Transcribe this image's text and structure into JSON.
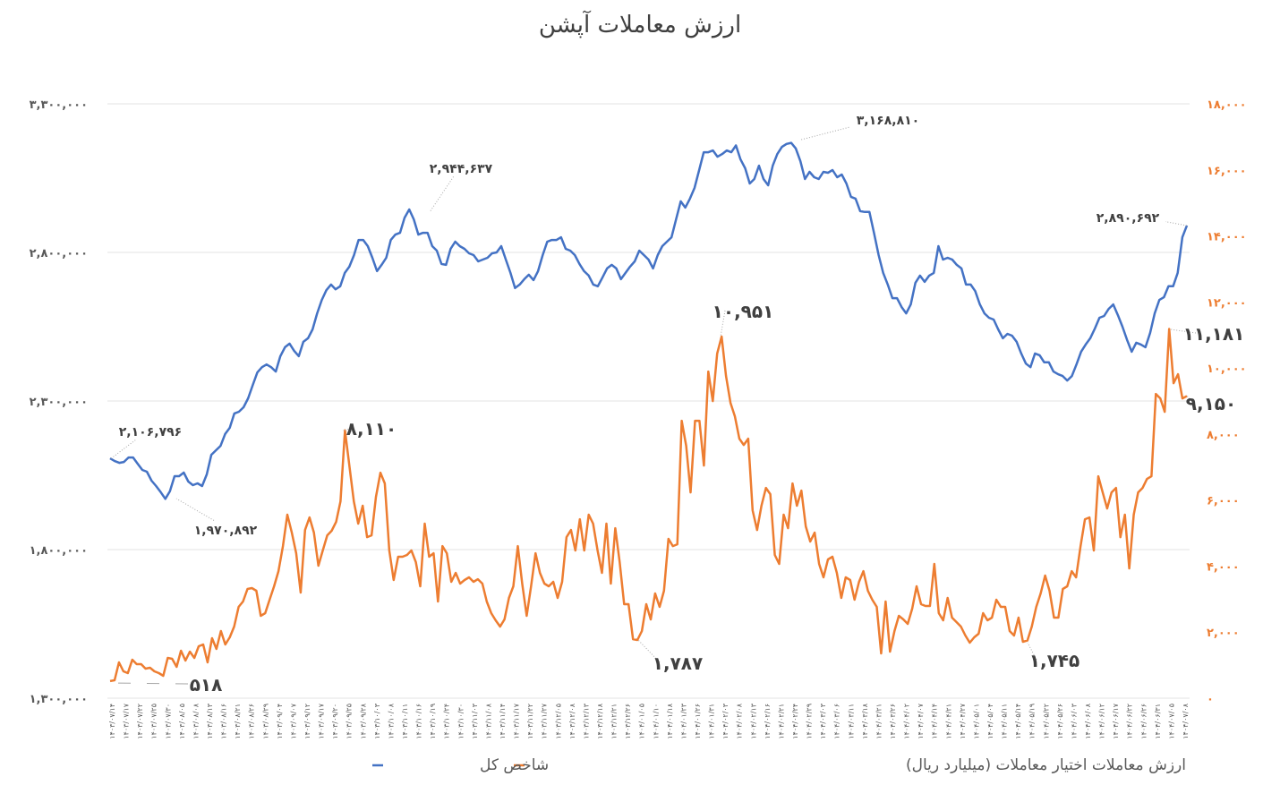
{
  "chart_data": {
    "type": "line",
    "title": "ارزش معاملات آپشن",
    "left_axis": {
      "range": [
        1300000,
        3300000
      ],
      "ticks": [
        1300000,
        1800000,
        2300000,
        2800000,
        3300000
      ],
      "tick_labels": [
        "۱,۳۰۰,۰۰۰",
        "۱,۸۰۰,۰۰۰",
        "۲,۳۰۰,۰۰۰",
        "۲,۸۰۰,۰۰۰",
        "۳,۳۰۰,۰۰۰"
      ]
    },
    "right_axis": {
      "range": [
        0,
        18000
      ],
      "ticks": [
        0,
        2000,
        4000,
        6000,
        8000,
        10000,
        12000,
        14000,
        16000,
        18000
      ],
      "tick_labels": [
        "۰",
        "۲,۰۰۰",
        "۴,۰۰۰",
        "۶,۰۰۰",
        "۸,۰۰۰",
        "۱۰,۰۰۰",
        "۱۲,۰۰۰",
        "۱۴,۰۰۰",
        "۱۶,۰۰۰",
        "۱۸,۰۰۰"
      ]
    },
    "grid": true,
    "legend_position": "bottom",
    "x_tick_labels": [
      "۱۴۰۳/۰۷/۱۴",
      "۱۴۰۳/۰۷/۱۷",
      "۱۴۰۳/۰۷/۲۲",
      "۱۴۰۳/۰۷/۲۵",
      "۱۴۰۳/۰۷/۳۰",
      "۱۴۰۳/۰۸/۰۵",
      "۱۴۰۳/۰۸/۰۸",
      "۱۴۰۳/۰۸/۱۳",
      "۱۴۰۳/۰۸/۱۶",
      "۱۴۰۳/۰۸/۲۱",
      "۱۴۰۳/۰۸/۲۶",
      "۱۴۰۳/۰۸/۲۹",
      "۱۴۰۳/۰۹/۰۴",
      "۱۴۰۳/۰۹/۰۷",
      "۱۴۰۳/۰۹/۱۲",
      "۱۴۰۳/۰۹/۱۷",
      "۱۴۰۳/۰۹/۲۰",
      "۱۴۰۳/۰۹/۲۵",
      "۱۴۰۳/۰۹/۲۸",
      "۱۴۰۳/۱۰/۰۳",
      "۱۴۰۳/۱۰/۰۸",
      "۱۴۰۳/۱۰/۱۱",
      "۱۴۰۳/۱۰/۱۶",
      "۱۴۰۳/۱۰/۱۹",
      "۱۴۰۳/۱۰/۲۴",
      "۱۴۰۳/۱۰/۳۰",
      "۱۴۰۳/۱۱/۰۳",
      "۱۴۰۳/۱۱/۰۸",
      "۱۴۰۳/۱۱/۱۴",
      "۱۴۰۳/۱۱/۱۷",
      "۱۴۰۳/۱۱/۲۲",
      "۱۴۰۳/۱۱/۲۷",
      "۱۴۰۳/۱۲/۰۵",
      "۱۴۰۳/۱۲/۰۸",
      "۱۴۰۳/۱۲/۱۳",
      "۱۴۰۳/۱۲/۱۸",
      "۱۴۰۳/۱۲/۲۱",
      "۱۴۰۳/۱۲/۲۶",
      "۱۴۰۴/۰۱/۰۵",
      "۱۴۰۴/۰۱/۱۰",
      "۱۴۰۴/۰۱/۱۸",
      "۱۴۰۴/۰۱/۲۳",
      "۱۴۰۴/۰۱/۲۶",
      "۱۴۰۴/۰۱/۳۱",
      "۱۴۰۴/۰۲/۰۳",
      "۱۴۰۴/۰۲/۰۸",
      "۱۴۰۴/۰۲/۱۳",
      "۱۴۰۴/۰۲/۱۶",
      "۱۴۰۴/۰۲/۲۱",
      "۱۴۰۴/۰۲/۲۴",
      "۱۴۰۴/۰۲/۲۹",
      "۱۴۰۴/۰۳/۰۳",
      "۱۴۰۴/۰۳/۰۶",
      "۱۴۰۴/۰۳/۱۱",
      "۱۴۰۴/۰۳/۱۸",
      "۱۴۰۴/۰۳/۲۱",
      "۱۴۰۴/۰۳/۲۶",
      "۱۴۰۴/۰۴/۰۲",
      "۱۴۰۴/۰۴/۰۷",
      "۱۴۰۴/۰۴/۱۴",
      "۱۴۰۴/۰۴/۲۱",
      "۱۴۰۴/۰۴/۲۷",
      "۱۴۰۴/۰۵/۰۱",
      "۱۴۰۴/۰۵/۰۴",
      "۱۴۰۴/۰۵/۱۱",
      "۱۴۰۴/۰۵/۱۴",
      "۱۴۰۴/۰۵/۱۹",
      "۱۴۰۴/۰۵/۲۲",
      "۱۴۰۴/۰۵/۲۶",
      "۱۴۰۴/۰۶/۰۳",
      "۱۴۰۴/۰۶/۰۸",
      "۱۴۰۴/۰۶/۱۲",
      "۱۴۰۴/۰۶/۱۷",
      "۱۴۰۴/۰۶/۲۲",
      "۱۴۰۴/۰۶/۲۶",
      "۱۴۰۴/۰۶/۳۱",
      "۱۴۰۴/۰۷/۰۵",
      "۱۴۰۴/۰۷/۰۸"
    ],
    "series": [
      {
        "name": "شاخص کل",
        "axis": "left",
        "color": "#4472C4",
        "values": [
          2106796,
          2098000,
          2092000,
          2095000,
          2110000,
          2110000,
          2089000,
          2068000,
          2062000,
          2032000,
          2014000,
          1993000,
          1970892,
          1996000,
          2047000,
          2047000,
          2059000,
          2029000,
          2017000,
          2023000,
          2014000,
          2053000,
          2119000,
          2134000,
          2149000,
          2189000,
          2210000,
          2258000,
          2264000,
          2279000,
          2309000,
          2354000,
          2396000,
          2414000,
          2423000,
          2414000,
          2399000,
          2451000,
          2481000,
          2493000,
          2469000,
          2451000,
          2499000,
          2511000,
          2541000,
          2595000,
          2640000,
          2673000,
          2692000,
          2676000,
          2686000,
          2731000,
          2752000,
          2791000,
          2842000,
          2842000,
          2821000,
          2782000,
          2737000,
          2758000,
          2782000,
          2842000,
          2860000,
          2866000,
          2917000,
          2944637,
          2911000,
          2860000,
          2866000,
          2866000,
          2821000,
          2806000,
          2761000,
          2758000,
          2812000,
          2836000,
          2821000,
          2812000,
          2797000,
          2791000,
          2770000,
          2776000,
          2782000,
          2797000,
          2800000,
          2821000,
          2776000,
          2731000,
          2680000,
          2692000,
          2710000,
          2725000,
          2707000,
          2737000,
          2791000,
          2836000,
          2842000,
          2842000,
          2851000,
          2812000,
          2806000,
          2791000,
          2761000,
          2737000,
          2722000,
          2692000,
          2686000,
          2716000,
          2746000,
          2758000,
          2746000,
          2710000,
          2731000,
          2752000,
          2770000,
          2806000,
          2791000,
          2776000,
          2746000,
          2791000,
          2821000,
          2836000,
          2851000,
          2911000,
          2972000,
          2951000,
          2981000,
          3017000,
          3077000,
          3137000,
          3137000,
          3143000,
          3122000,
          3131000,
          3143000,
          3137000,
          3160000,
          3113000,
          3083000,
          3032000,
          3047000,
          3092000,
          3047000,
          3026000,
          3092000,
          3131000,
          3155000,
          3165000,
          3168810,
          3150000,
          3107000,
          3047000,
          3071000,
          3053000,
          3047000,
          3071000,
          3068000,
          3077000,
          3053000,
          3062000,
          3032000,
          2987000,
          2981000,
          2939000,
          2936000,
          2936000,
          2866000,
          2791000,
          2731000,
          2692000,
          2646000,
          2646000,
          2616000,
          2595000,
          2625000,
          2698000,
          2722000,
          2701000,
          2722000,
          2731000,
          2821000,
          2776000,
          2782000,
          2776000,
          2758000,
          2746000,
          2692000,
          2692000,
          2670000,
          2625000,
          2595000,
          2580000,
          2574000,
          2541000,
          2511000,
          2526000,
          2520000,
          2499000,
          2460000,
          2426000,
          2414000,
          2460000,
          2454000,
          2430000,
          2430000,
          2399000,
          2390000,
          2384000,
          2369000,
          2384000,
          2423000,
          2466000,
          2490000,
          2511000,
          2544000,
          2580000,
          2586000,
          2610000,
          2625000,
          2589000,
          2550000,
          2505000,
          2466000,
          2496000,
          2490000,
          2481000,
          2529000,
          2595000,
          2640000,
          2649000,
          2686000,
          2686000,
          2731000,
          2851000,
          2890692
        ]
      },
      {
        "name": "ارزش معاملات اختیار معاملات (میلیارد ریال)",
        "axis": "right",
        "color": "#ED7D31",
        "values": [
          518,
          542,
          1084,
          813,
          759,
          1165,
          1030,
          1030,
          894,
          921,
          813,
          759,
          678,
          1220,
          1192,
          949,
          1436,
          1138,
          1409,
          1220,
          1572,
          1626,
          1084,
          1816,
          1491,
          2033,
          1626,
          1843,
          2168,
          2764,
          2927,
          3306,
          3333,
          3252,
          2493,
          2575,
          2981,
          3388,
          3848,
          4607,
          5556,
          5014,
          4390,
          3198,
          5095,
          5474,
          5014,
          4011,
          4472,
          4932,
          5068,
          5339,
          5962,
          8110,
          7046,
          5962,
          5285,
          5827,
          4878,
          4932,
          6098,
          6829,
          6504,
          4472,
          3577,
          4282,
          4282,
          4336,
          4472,
          4119,
          3388,
          5285,
          4282,
          4390,
          2927,
          4607,
          4390,
          3523,
          3794,
          3469,
          3577,
          3659,
          3523,
          3604,
          3469,
          2927,
          2575,
          2358,
          2168,
          2385,
          3035,
          3388,
          4607,
          3469,
          2493,
          3388,
          4390,
          3794,
          3469,
          3388,
          3523,
          3035,
          3523,
          4878,
          5095,
          4472,
          5420,
          4472,
          5556,
          5285,
          4472,
          3794,
          5285,
          3469,
          5149,
          4119,
          2846,
          2846,
          1787,
          1762,
          2033,
          2846,
          2385,
          3171,
          2764,
          3252,
          4824,
          4607,
          4661,
          8401,
          7642,
          6233,
          8401,
          8401,
          7046,
          9892,
          8997,
          10434,
          10951,
          9756,
          8943,
          8537,
          7859,
          7669,
          7859,
          5691,
          5095,
          5827,
          6369,
          6179,
          4336,
          4065,
          5556,
          5149,
          6504,
          5827,
          6287,
          5203,
          4743,
          5014,
          4065,
          3659,
          4201,
          4282,
          3794,
          3035,
          3659,
          3577,
          2981,
          3523,
          3848,
          3252,
          2981,
          2764,
          1355,
          2927,
          1409,
          2033,
          2493,
          2385,
          2249,
          2710,
          3388,
          2846,
          2791,
          2791,
          4065,
          2575,
          2358,
          3035,
          2439,
          2304,
          2168,
          1897,
          1680,
          1843,
          1951,
          2575,
          2358,
          2439,
          2981,
          2764,
          2764,
          2033,
          1897,
          2439,
          1707,
          1745,
          2168,
          2764,
          3171,
          3713,
          3252,
          2439,
          2439,
          3306,
          3388,
          3848,
          3659,
          4607,
          5420,
          5474,
          4472,
          6721,
          6233,
          5745,
          6233,
          6369,
          4878,
          5556,
          3930,
          5556,
          6233,
          6369,
          6640,
          6721,
          9214,
          9079,
          8672,
          11181,
          9539,
          9810,
          9079,
          9150
        ]
      }
    ],
    "annotations": {
      "left": [
        "۲,۱۰۶,۷۹۶",
        "۱,۹۷۰,۸۹۲",
        "۲,۹۴۴,۶۳۷",
        "۳,۱۶۸,۸۱۰",
        "۲,۸۹۰,۶۹۲"
      ],
      "right": [
        "۵۱۸",
        "۸,۱۱۰",
        "۱۰,۹۵۱",
        "۱,۷۸۷",
        "۱,۷۴۵",
        "۱۱,۱۸۱",
        "۹,۱۵۰"
      ]
    },
    "legend": [
      {
        "label": "شاخص کل",
        "color": "#4472C4"
      },
      {
        "label": "ارزش معاملات اختیار معاملات (میلیارد ریال)",
        "color": "#ED7D31"
      }
    ]
  }
}
